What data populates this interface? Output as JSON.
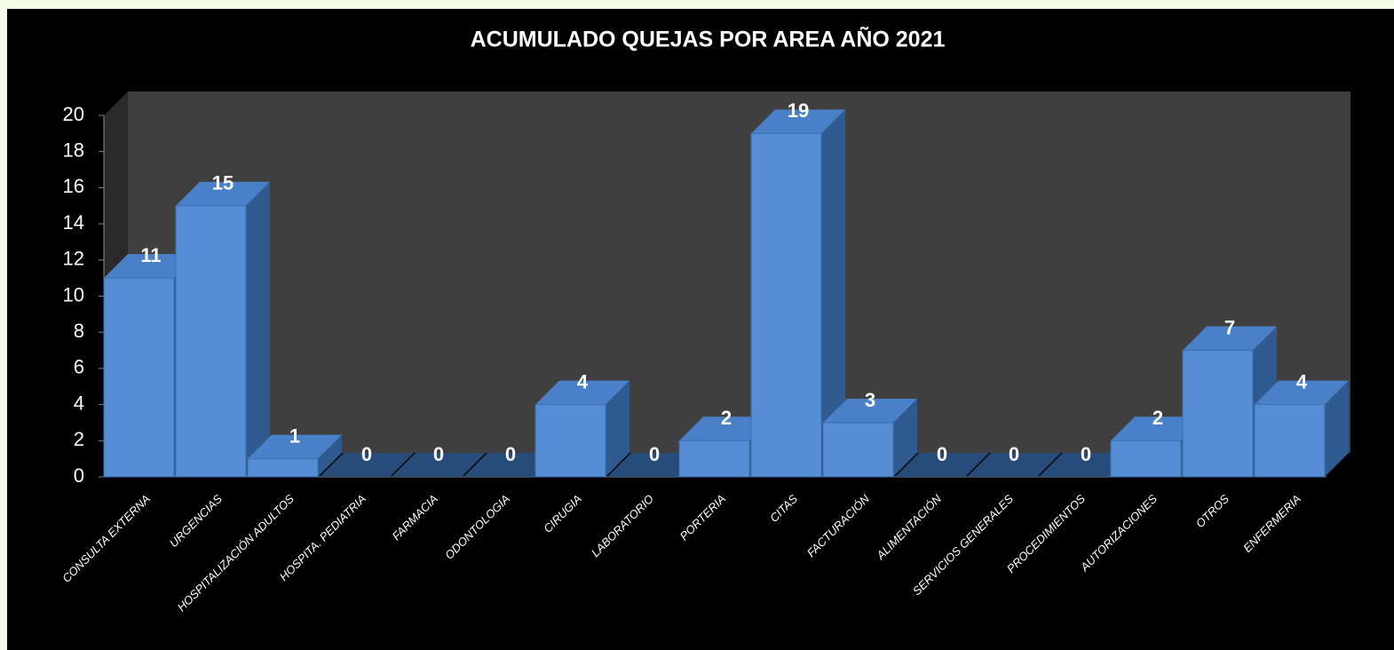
{
  "chart_data": {
    "type": "bar3d",
    "title": "ACUMULADO QUEJAS POR AREA AÑO 2021",
    "categories": [
      "CONSULTA EXTERNA",
      "URGENCIAS",
      "HOSPITALIZACIÓN ADULTOS",
      "HOSPITA. PEDIATRIA",
      "FARMACIA",
      "ODONTOLOGIA",
      "CIRUGIA",
      "LABORATORIO",
      "PORTERIA",
      "CITAS",
      "FACTURACIÓN",
      "ALIMENTACIÓN",
      "SERVICIOS GENERALES",
      "PROCEDIMIENTOS",
      "AUTORIZACIONES",
      "OTROS",
      "ENFERMERIA"
    ],
    "values": [
      11,
      15,
      1,
      0,
      0,
      0,
      4,
      0,
      2,
      19,
      3,
      0,
      0,
      0,
      2,
      7,
      4
    ],
    "color": "#558ed5",
    "ylim": [
      0,
      20
    ],
    "yticks": [
      0,
      2,
      4,
      6,
      8,
      10,
      12,
      14,
      16,
      18,
      20
    ],
    "grid": false
  }
}
